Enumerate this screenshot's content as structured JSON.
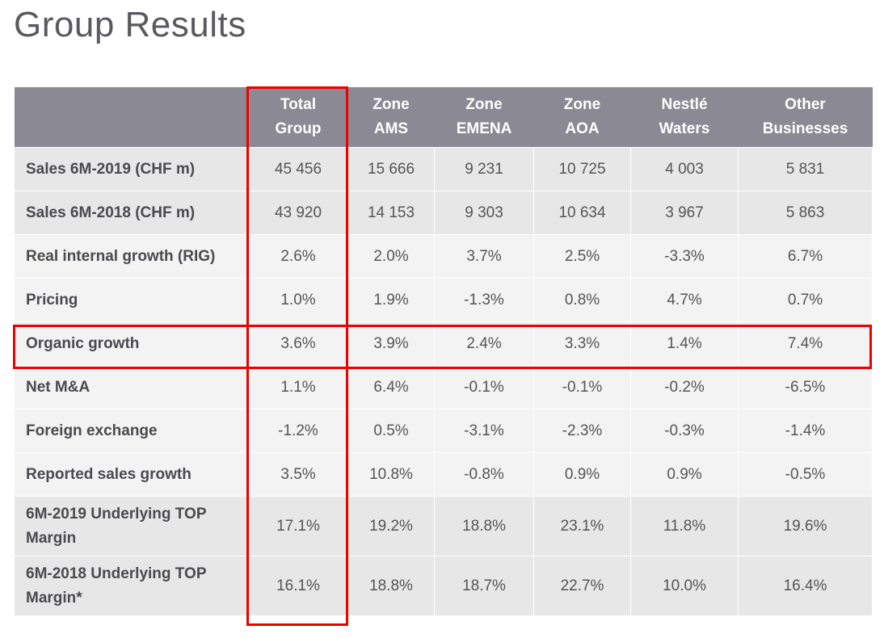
{
  "title": "Group Results",
  "columns": [
    "Total Group",
    "Zone AMS",
    "Zone EMENA",
    "Zone AOA",
    "Nestlé Waters",
    "Other Businesses"
  ],
  "column_lines": [
    [
      "Total",
      "Group"
    ],
    [
      "Zone",
      "AMS"
    ],
    [
      "Zone",
      "EMENA"
    ],
    [
      "Zone",
      "AOA"
    ],
    [
      "Nestlé",
      "Waters"
    ],
    [
      "Other",
      "Businesses"
    ]
  ],
  "rows": [
    {
      "label": "Sales 6M-2019 (CHF m)",
      "values": [
        "45 456",
        "15 666",
        "9 231",
        "10 725",
        "4 003",
        "5 831"
      ]
    },
    {
      "label": "Sales 6M-2018 (CHF m)",
      "values": [
        "43 920",
        "14 153",
        "9 303",
        "10 634",
        "3 967",
        "5 863"
      ]
    },
    {
      "label": "Real internal growth (RIG)",
      "values": [
        "2.6%",
        "2.0%",
        "3.7%",
        "2.5%",
        "-3.3%",
        "6.7%"
      ]
    },
    {
      "label": "Pricing",
      "values": [
        "1.0%",
        "1.9%",
        "-1.3%",
        "0.8%",
        "4.7%",
        "0.7%"
      ]
    },
    {
      "label": "Organic growth",
      "values": [
        "3.6%",
        "3.9%",
        "2.4%",
        "3.3%",
        "1.4%",
        "7.4%"
      ]
    },
    {
      "label": "Net M&A",
      "values": [
        "1.1%",
        "6.4%",
        "-0.1%",
        "-0.1%",
        "-0.2%",
        "-6.5%"
      ]
    },
    {
      "label": "Foreign exchange",
      "values": [
        "-1.2%",
        "0.5%",
        "-3.1%",
        "-2.3%",
        "-0.3%",
        "-1.4%"
      ]
    },
    {
      "label": "Reported sales growth",
      "values": [
        "3.5%",
        "10.8%",
        "-0.8%",
        "0.9%",
        "0.9%",
        "-0.5%"
      ]
    },
    {
      "label": "6M-2019 Underlying TOP Margin",
      "values": [
        "17.1%",
        "19.2%",
        "18.8%",
        "23.1%",
        "11.8%",
        "19.6%"
      ]
    },
    {
      "label": "6M-2018 Underlying TOP Margin*",
      "values": [
        "16.1%",
        "18.8%",
        "18.7%",
        "22.7%",
        "10.0%",
        "16.4%"
      ]
    }
  ],
  "highlight_color": "#ee0000"
}
